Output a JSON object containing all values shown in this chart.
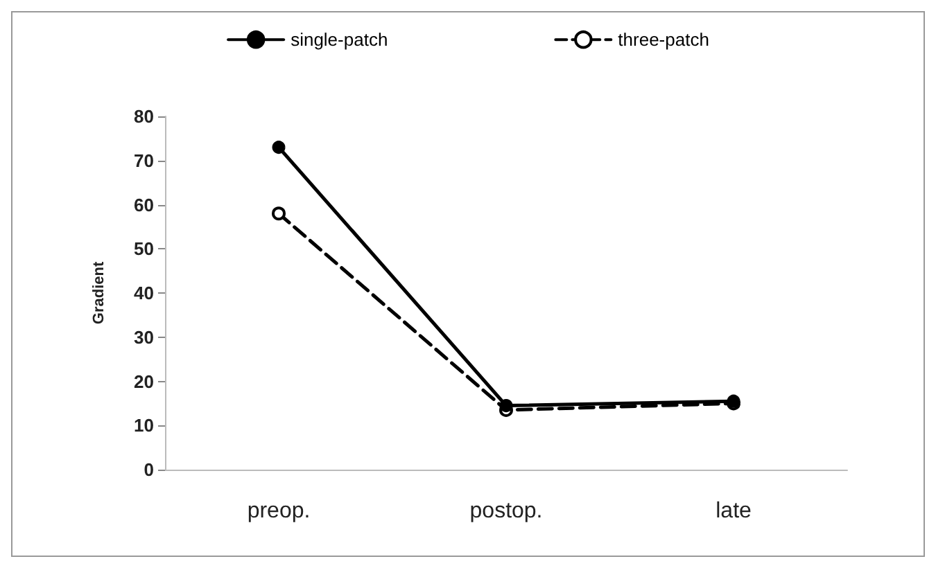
{
  "chart_data": {
    "type": "line",
    "ylabel": "Gradient",
    "categories": [
      "preop.",
      "postop.",
      "late"
    ],
    "series": [
      {
        "name": "single-patch",
        "color": "#000000",
        "values": [
          73,
          14.5,
          15.5
        ],
        "line_style": "solid",
        "marker": "circle"
      },
      {
        "name": "three-patch",
        "color": "#000000",
        "values": [
          58,
          13.5,
          15
        ],
        "line_style": "dashed",
        "marker": "circle"
      }
    ],
    "ylim": [
      0,
      80
    ],
    "yticks": [
      0,
      10,
      20,
      30,
      40,
      50,
      60,
      70,
      80
    ],
    "grid": false,
    "legend": "top"
  }
}
